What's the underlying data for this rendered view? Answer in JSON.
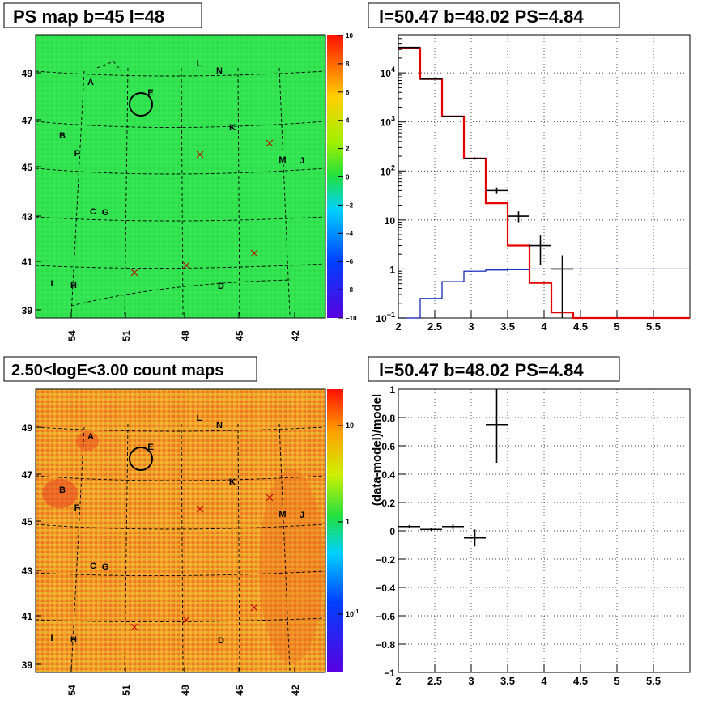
{
  "colors": {
    "map_top_base": "#2fe048",
    "map_bottom_base": "#f29a2a",
    "model_line": "#e60000",
    "component_line": "#0018b4",
    "data_points": "#000000",
    "grid": "#000000"
  },
  "panels": {
    "top_left": {
      "title": "PS map b=45 l=48"
    },
    "top_right": {
      "title": "l=50.47 b=48.02 PS=4.84"
    },
    "bottom_left": {
      "title": "2.50<logE<3.00 count maps"
    },
    "bottom_right": {
      "title": "l=50.47 b=48.02 PS=4.84"
    }
  },
  "chart_data": [
    {
      "type": "heatmap",
      "title": "PS map b=45 l=48",
      "x_tick_labels": [
        "54",
        "51",
        "48",
        "45",
        "42"
      ],
      "y_tick_labels": [
        "39",
        "41",
        "43",
        "45",
        "47",
        "49"
      ],
      "colorbar": {
        "scale": "linear",
        "range": [
          -10,
          10
        ],
        "tick_labels": [
          "10",
          "8",
          "6",
          "4",
          "2",
          "0",
          "−2",
          "−4",
          "−6",
          "−8",
          "−10"
        ]
      },
      "source_labels": [
        "A",
        "B",
        "C",
        "D",
        "E",
        "F",
        "G",
        "H",
        "I",
        "J",
        "K",
        "L",
        "M",
        "N"
      ]
    },
    {
      "type": "line",
      "title": "l=50.47 b=48.02 PS=4.84",
      "y_scale": "log",
      "xlim": [
        2,
        6
      ],
      "ylim": [
        0.1,
        60000
      ],
      "x_tick_labels": [
        "2",
        "2.5",
        "3",
        "3.5",
        "4",
        "4.5",
        "5",
        "5.5"
      ],
      "y_tick_labels": [
        "10^-1",
        "1",
        "10",
        "10^2",
        "10^3",
        "10^4"
      ],
      "grid": true,
      "series": [
        {
          "kind": "step",
          "color": "#e60000",
          "edges": [
            2.0,
            2.3,
            2.6,
            2.9,
            3.2,
            3.5,
            3.8,
            4.1,
            4.4,
            6.0
          ],
          "values": [
            32000,
            7500,
            1300,
            180,
            22,
            3.0,
            0.52,
            0.13,
            0.1
          ]
        },
        {
          "kind": "step",
          "color": "#0018b4",
          "edges": [
            2.0,
            2.3,
            2.6,
            2.9,
            3.2,
            3.5,
            3.8,
            4.1,
            4.4,
            6.0
          ],
          "values": [
            0.1,
            0.25,
            0.55,
            0.9,
            0.95,
            0.97,
            1.0,
            1.0,
            1.0
          ]
        },
        {
          "kind": "points",
          "color": "#000000",
          "points": [
            {
              "x": 2.15,
              "xerr": 0.15,
              "y": 33000,
              "ylo": 32000,
              "yhi": 34000
            },
            {
              "x": 2.45,
              "xerr": 0.15,
              "y": 7500,
              "ylo": 7300,
              "yhi": 7700
            },
            {
              "x": 2.75,
              "xerr": 0.15,
              "y": 1300,
              "ylo": 1250,
              "yhi": 1350
            },
            {
              "x": 3.05,
              "xerr": 0.15,
              "y": 180,
              "ylo": 170,
              "yhi": 190
            },
            {
              "x": 3.35,
              "xerr": 0.15,
              "y": 40,
              "ylo": 34,
              "yhi": 46
            },
            {
              "x": 3.65,
              "xerr": 0.15,
              "y": 12,
              "ylo": 9,
              "yhi": 15
            },
            {
              "x": 3.95,
              "xerr": 0.15,
              "y": 3,
              "ylo": 1.2,
              "yhi": 4.8
            },
            {
              "x": 4.25,
              "xerr": 0.15,
              "y": 1,
              "ylo": 0.1,
              "yhi": 1.9
            }
          ]
        }
      ]
    },
    {
      "type": "heatmap",
      "title": "2.50<logE<3.00 count maps",
      "x_tick_labels": [
        "54",
        "51",
        "48",
        "45",
        "42"
      ],
      "y_tick_labels": [
        "39",
        "41",
        "43",
        "45",
        "47",
        "49"
      ],
      "colorbar": {
        "scale": "log",
        "tick_labels": [
          "10",
          "1",
          "10^-1"
        ]
      },
      "source_labels": [
        "A",
        "B",
        "C",
        "D",
        "E",
        "F",
        "G",
        "H",
        "I",
        "J",
        "K",
        "L",
        "M",
        "N"
      ]
    },
    {
      "type": "scatter",
      "title": "l=50.47 b=48.02 PS=4.84",
      "ylabel": "(data-model)/model",
      "xlim": [
        2,
        6
      ],
      "ylim": [
        -1,
        1
      ],
      "x_tick_labels": [
        "2",
        "2.5",
        "3",
        "3.5",
        "4",
        "4.5",
        "5",
        "5.5"
      ],
      "y_tick_labels": [
        "1",
        "0.8",
        "0.6",
        "0.4",
        "0.2",
        "0",
        "−0.2",
        "−0.4",
        "−0.6",
        "−0.8",
        "−1"
      ],
      "grid": true,
      "series": [
        {
          "kind": "points",
          "color": "#000000",
          "points": [
            {
              "x": 2.15,
              "xerr": 0.15,
              "y": 0.03,
              "ylo": 0.02,
              "yhi": 0.04
            },
            {
              "x": 2.45,
              "xerr": 0.15,
              "y": 0.01,
              "ylo": 0.0,
              "yhi": 0.02
            },
            {
              "x": 2.75,
              "xerr": 0.15,
              "y": 0.03,
              "ylo": 0.01,
              "yhi": 0.05
            },
            {
              "x": 3.05,
              "xerr": 0.15,
              "y": -0.05,
              "ylo": -0.11,
              "yhi": 0.01
            },
            {
              "x": 3.35,
              "xerr": 0.15,
              "y": 0.75,
              "ylo": 0.48,
              "yhi": 1.02
            }
          ]
        }
      ]
    }
  ]
}
